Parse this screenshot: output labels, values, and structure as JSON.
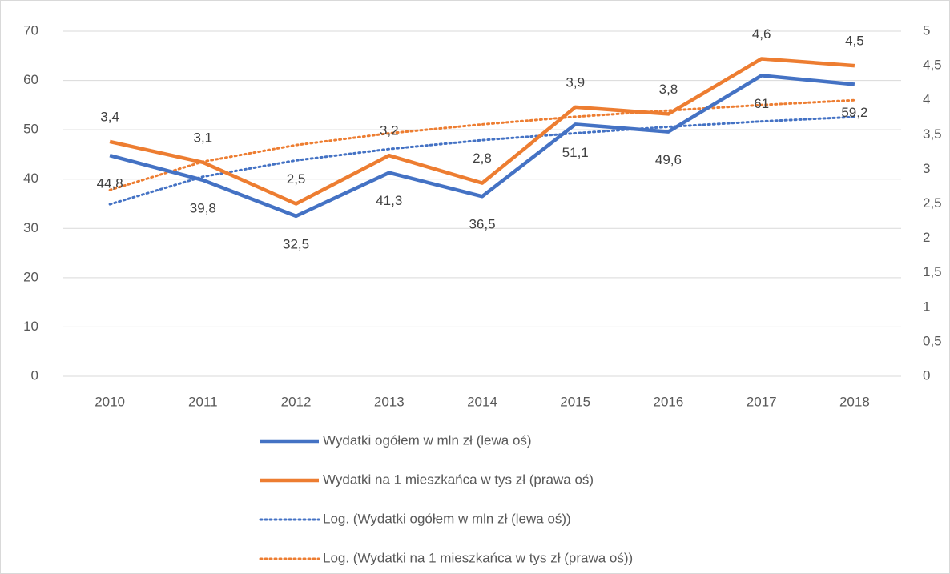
{
  "chart_data": {
    "type": "line",
    "categories": [
      "2010",
      "2011",
      "2012",
      "2013",
      "2014",
      "2015",
      "2016",
      "2017",
      "2018"
    ],
    "series": [
      {
        "name": "Wydatki ogółem w mln zł (lewa oś)",
        "color": "#4472c4",
        "values": [
          44.8,
          39.8,
          32.5,
          41.3,
          36.5,
          51.1,
          49.6,
          61,
          59.2
        ],
        "value_labels": [
          "44,8",
          "39,8",
          "32,5",
          "41,3",
          "36,5",
          "51,1",
          "49,6",
          "61",
          "59,2"
        ]
      },
      {
        "name": "Wydatki na 1 mieszkańca w tys zł (prawa oś)",
        "color": "#ed7d31",
        "axis": "y2",
        "values": [
          3.4,
          3.1,
          2.5,
          3.2,
          2.8,
          3.9,
          3.8,
          4.6,
          4.5
        ],
        "value_labels": [
          "3,4",
          "3,1",
          "2,5",
          "3,2",
          "2,8",
          "3,9",
          "3,8",
          "4,6",
          "4,5"
        ]
      },
      {
        "name": "Log. (Wydatki ogółem w mln zł (lewa oś))",
        "color": "#4472c4",
        "dotted": true,
        "values": [
          34.9,
          40.5,
          43.8,
          46.1,
          47.9,
          49.3,
          50.6,
          51.7,
          52.6
        ]
      },
      {
        "name": "Log. (Wydatki na 1 mieszkańca w tys zł (prawa oś))",
        "color": "#ed7d31",
        "dotted": true,
        "axis": "y2",
        "values": [
          2.7,
          3.11,
          3.35,
          3.52,
          3.65,
          3.76,
          3.85,
          3.93,
          4.0
        ]
      }
    ],
    "ylim": [
      0,
      70
    ],
    "yticks": [
      0,
      10,
      20,
      30,
      40,
      50,
      60,
      70
    ],
    "y2lim": [
      0,
      5
    ],
    "y2ticks": [
      0,
      {
        "value": 0.5,
        "label": "0,5"
      },
      1,
      {
        "value": 1.5,
        "label": "1,5"
      },
      2,
      {
        "value": 2.5,
        "label": "2,5"
      },
      3,
      {
        "value": 3.5,
        "label": "3,5"
      },
      4,
      {
        "value": 4.5,
        "label": "4,5"
      },
      5
    ],
    "grid": true,
    "legend": "bottom"
  }
}
